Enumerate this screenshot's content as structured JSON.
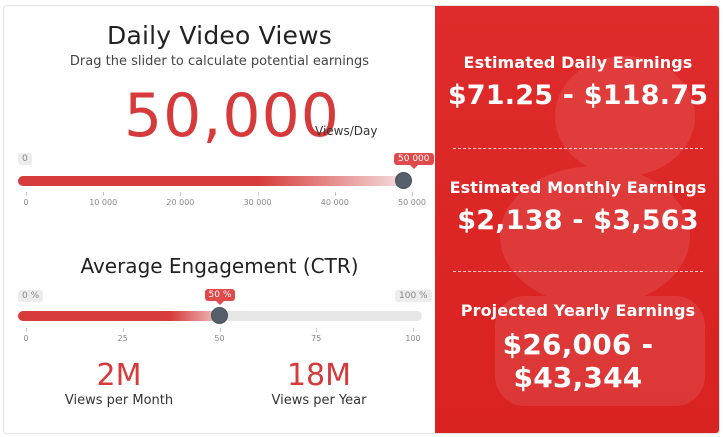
{
  "views_section": {
    "title": "Daily Video Views",
    "subtitle": "Drag the slider to calculate potential earnings",
    "value_display": "50,000",
    "unit": "Views/Day",
    "slider": {
      "min_label": "0",
      "current_label": "50 000",
      "value": 50000,
      "max": 50000,
      "ticks": [
        "0",
        "10 000",
        "20 000",
        "30 000",
        "40 000",
        "50 000"
      ]
    }
  },
  "engagement_section": {
    "title": "Average Engagement (CTR)",
    "slider": {
      "min_label": "0 %",
      "current_label": "50 %",
      "max_label": "100 %",
      "value": 50,
      "max": 100,
      "ticks": [
        "0",
        "25",
        "50",
        "75",
        "100"
      ]
    }
  },
  "stats": {
    "monthly_value": "2M",
    "monthly_label": "Views per Month",
    "yearly_value": "18M",
    "yearly_label": "Views per Year"
  },
  "earnings": {
    "daily_label": "Estimated Daily Earnings",
    "daily_value": "$71.25 - $118.75",
    "monthly_label": "Estimated Monthly Earnings",
    "monthly_value": "$2,138 - $3,563",
    "yearly_label": "Projected Yearly Earnings",
    "yearly_value": "$26,006 - $43,344"
  },
  "colors": {
    "accent_red": "#d63a3a",
    "panel_red": "#dc2626",
    "thumb": "#56606a",
    "track": "#e6e6e6"
  }
}
